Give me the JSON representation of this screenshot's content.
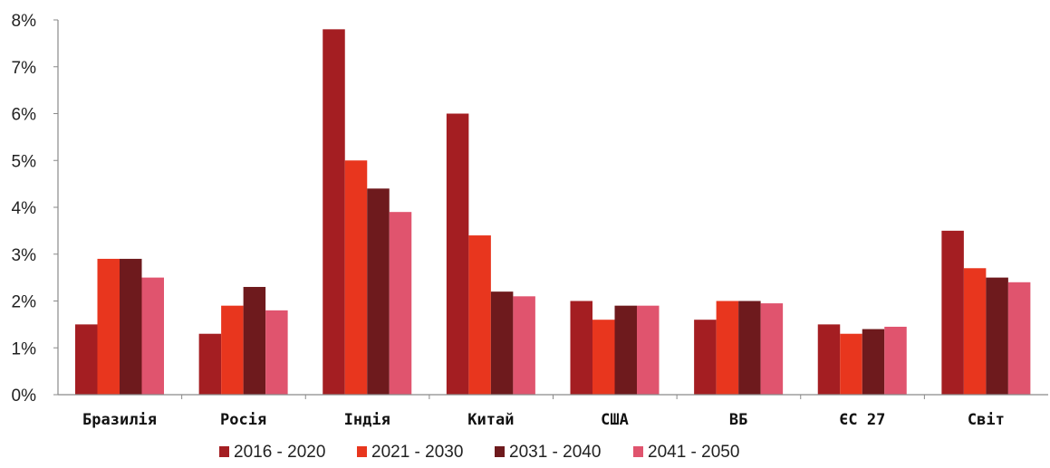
{
  "chart_data": {
    "type": "bar",
    "title": "",
    "xlabel": "",
    "ylabel": "",
    "y_tick_labels": [
      "0%",
      "1%",
      "2%",
      "3%",
      "4%",
      "5%",
      "6%",
      "7%",
      "8%"
    ],
    "ylim": [
      0,
      8
    ],
    "grid": false,
    "legend_position": "bottom",
    "categories": [
      "Бразилія",
      "Росія",
      "Індія",
      "Китай",
      "США",
      "ВБ",
      "ЄС 27",
      "Світ"
    ],
    "series": [
      {
        "name": "2016 - 2020",
        "color": "#A41E22",
        "values": [
          1.5,
          1.3,
          7.8,
          6.0,
          2.0,
          1.6,
          1.5,
          3.5
        ]
      },
      {
        "name": "2021 - 2030",
        "color": "#E8361E",
        "values": [
          2.9,
          1.9,
          5.0,
          3.4,
          1.6,
          2.0,
          1.3,
          2.7
        ]
      },
      {
        "name": "2031 - 2040",
        "color": "#6E1A1D",
        "values": [
          2.9,
          2.3,
          4.4,
          2.2,
          1.9,
          2.0,
          1.4,
          2.5
        ]
      },
      {
        "name": "2041 - 2050",
        "color": "#E0546E",
        "values": [
          2.5,
          1.8,
          3.9,
          2.1,
          1.9,
          1.95,
          1.45,
          2.4
        ]
      }
    ]
  }
}
